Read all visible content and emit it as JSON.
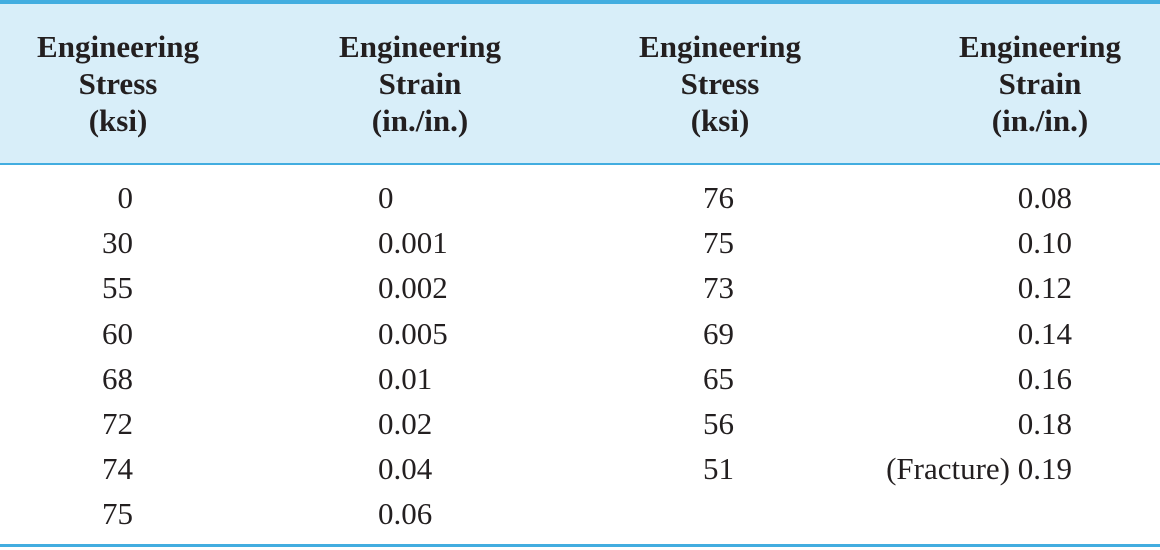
{
  "table": {
    "headers": [
      [
        "Engineering",
        "Stress",
        "(ksi)"
      ],
      [
        "Engineering",
        "Strain",
        "(in./in.)"
      ],
      [
        "Engineering",
        "Stress",
        "(ksi)"
      ],
      [
        "Engineering",
        "Strain",
        "(in./in.)"
      ]
    ],
    "rows": [
      [
        "0",
        "0",
        "76",
        "0.08"
      ],
      [
        "30",
        "0.001",
        "75",
        "0.10"
      ],
      [
        "55",
        "0.002",
        "73",
        "0.12"
      ],
      [
        "60",
        "0.005",
        "69",
        "0.14"
      ],
      [
        "68",
        "0.01",
        "65",
        "0.16"
      ],
      [
        "72",
        "0.02",
        "56",
        "0.18"
      ],
      [
        "74",
        "0.04",
        "51",
        "(Fracture) 0.19"
      ],
      [
        "75",
        "0.06"
      ]
    ]
  }
}
